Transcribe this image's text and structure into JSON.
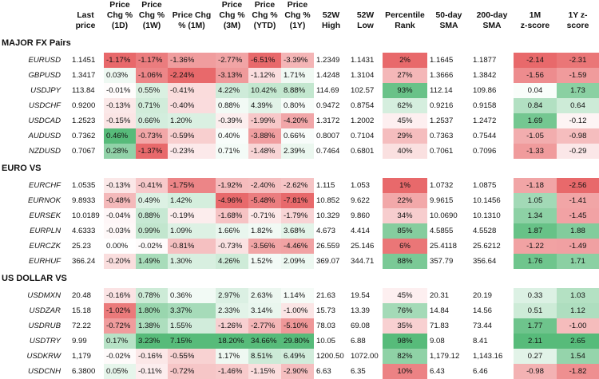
{
  "columns": [
    "",
    "Last\nprice",
    "Price\nChg %\n(1D)",
    "Price\nChg %\n(1W)",
    "Price Chg\n% (1M)",
    "Price\nChg %\n(3M)",
    "Price\nChg %\n(YTD)",
    "Price\nChg %\n(1Y)",
    "52W\nHigh",
    "52W\nLow",
    "Percentile\nRank",
    "50-day\nSMA",
    "200-day\nSMA",
    "1M\nz-score",
    "1Y z-\nscore"
  ],
  "sections": [
    {
      "title": "MAJOR FX Pairs",
      "rows": [
        {
          "pair": "EURUSD",
          "last": "1.1451",
          "d1": "-1.17%",
          "w1": "-1.17%",
          "m1": "-1.36%",
          "m3": "-2.77%",
          "ytd": "-6.51%",
          "y1": "-3.39%",
          "high": "1.2349",
          "low": "1.1431",
          "pct": "2%",
          "sma50": "1.1645",
          "sma200": "1.1877",
          "z1m": "-2.14",
          "z1y": "-2.31"
        },
        {
          "pair": "GBPUSD",
          "last": "1.3417",
          "d1": "0.03%",
          "w1": "-1.06%",
          "m1": "-2.24%",
          "m3": "-3.13%",
          "ytd": "-1.12%",
          "y1": "1.71%",
          "high": "1.4248",
          "low": "1.3104",
          "pct": "27%",
          "sma50": "1.3666",
          "sma200": "1.3842",
          "z1m": "-1.56",
          "z1y": "-1.59"
        },
        {
          "pair": "USDJPY",
          "last": "113.84",
          "d1": "-0.01%",
          "w1": "0.55%",
          "m1": "-0.41%",
          "m3": "4.22%",
          "ytd": "10.42%",
          "y1": "8.88%",
          "high": "114.69",
          "low": "102.57",
          "pct": "93%",
          "sma50": "112.14",
          "sma200": "109.86",
          "z1m": "0.04",
          "z1y": "1.73"
        },
        {
          "pair": "USDCHF",
          "last": "0.9200",
          "d1": "-0.13%",
          "w1": "0.71%",
          "m1": "-0.40%",
          "m3": "0.88%",
          "ytd": "4.39%",
          "y1": "0.80%",
          "high": "0.9472",
          "low": "0.8754",
          "pct": "62%",
          "sma50": "0.9216",
          "sma200": "0.9158",
          "z1m": "0.84",
          "z1y": "0.64"
        },
        {
          "pair": "USDCAD",
          "last": "1.2523",
          "d1": "-0.15%",
          "w1": "0.66%",
          "m1": "1.20%",
          "m3": "-0.39%",
          "ytd": "-1.99%",
          "y1": "-4.20%",
          "high": "1.3172",
          "low": "1.2002",
          "pct": "45%",
          "sma50": "1.2537",
          "sma200": "1.2472",
          "z1m": "1.69",
          "z1y": "-0.12"
        },
        {
          "pair": "AUDUSD",
          "last": "0.7362",
          "d1": "0.46%",
          "w1": "-0.73%",
          "m1": "-0.59%",
          "m3": "0.40%",
          "ytd": "-3.88%",
          "y1": "0.66%",
          "high": "0.8007",
          "low": "0.7104",
          "pct": "29%",
          "sma50": "0.7363",
          "sma200": "0.7544",
          "z1m": "-1.05",
          "z1y": "-0.98"
        },
        {
          "pair": "NZDUSD",
          "last": "0.7067",
          "d1": "0.28%",
          "w1": "-1.37%",
          "m1": "-0.23%",
          "m3": "0.71%",
          "ytd": "-1.48%",
          "y1": "2.39%",
          "high": "0.7464",
          "low": "0.6801",
          "pct": "40%",
          "sma50": "0.7061",
          "sma200": "0.7096",
          "z1m": "-1.33",
          "z1y": "-0.29"
        }
      ]
    },
    {
      "title": "EURO VS",
      "rows": [
        {
          "pair": "EURCHF",
          "last": "1.0535",
          "d1": "-0.13%",
          "w1": "-0.41%",
          "m1": "-1.75%",
          "m3": "-1.92%",
          "ytd": "-2.40%",
          "y1": "-2.62%",
          "high": "1.115",
          "low": "1.053",
          "pct": "1%",
          "sma50": "1.0732",
          "sma200": "1.0875",
          "z1m": "-1.18",
          "z1y": "-2.56"
        },
        {
          "pair": "EURNOK",
          "last": "9.8933",
          "d1": "-0.48%",
          "w1": "0.49%",
          "m1": "1.42%",
          "m3": "-4.96%",
          "ytd": "-5.48%",
          "y1": "-7.81%",
          "high": "10.852",
          "low": "9.622",
          "pct": "22%",
          "sma50": "9.9615",
          "sma200": "10.1456",
          "z1m": "1.05",
          "z1y": "-1.41"
        },
        {
          "pair": "EURSEK",
          "last": "10.0189",
          "d1": "-0.04%",
          "w1": "0.88%",
          "m1": "-0.19%",
          "m3": "-1.68%",
          "ytd": "-0.71%",
          "y1": "-1.79%",
          "high": "10.329",
          "low": "9.860",
          "pct": "34%",
          "sma50": "10.0690",
          "sma200": "10.1310",
          "z1m": "1.34",
          "z1y": "-1.45"
        },
        {
          "pair": "EURPLN",
          "last": "4.6333",
          "d1": "-0.03%",
          "w1": "0.99%",
          "m1": "1.09%",
          "m3": "1.66%",
          "ytd": "1.82%",
          "y1": "3.68%",
          "high": "4.673",
          "low": "4.414",
          "pct": "85%",
          "sma50": "4.5855",
          "sma200": "4.5528",
          "z1m": "1.87",
          "z1y": "1.88"
        },
        {
          "pair": "EURCZK",
          "last": "25.23",
          "d1": "0.00%",
          "w1": "-0.02%",
          "m1": "-0.81%",
          "m3": "-0.73%",
          "ytd": "-3.56%",
          "y1": "-4.46%",
          "high": "26.559",
          "low": "25.146",
          "pct": "6%",
          "sma50": "25.4118",
          "sma200": "25.6212",
          "z1m": "-1.22",
          "z1y": "-1.49"
        },
        {
          "pair": "EURHUF",
          "last": "366.24",
          "d1": "-0.20%",
          "w1": "1.49%",
          "m1": "1.30%",
          "m3": "4.26%",
          "ytd": "1.52%",
          "y1": "2.09%",
          "high": "369.07",
          "low": "344.71",
          "pct": "88%",
          "sma50": "357.79",
          "sma200": "356.64",
          "z1m": "1.76",
          "z1y": "1.71"
        }
      ]
    },
    {
      "title": "US DOLLAR VS",
      "rows": [
        {
          "pair": "USDMXN",
          "last": "20.48",
          "d1": "-0.16%",
          "w1": "0.78%",
          "m1": "0.36%",
          "m3": "2.97%",
          "ytd": "2.63%",
          "y1": "1.14%",
          "high": "21.63",
          "low": "19.54",
          "pct": "45%",
          "sma50": "20.31",
          "sma200": "20.19",
          "z1m": "0.33",
          "z1y": "1.03"
        },
        {
          "pair": "USDZAR",
          "last": "15.18",
          "d1": "-1.02%",
          "w1": "1.80%",
          "m1": "3.37%",
          "m3": "2.33%",
          "ytd": "3.14%",
          "y1": "-1.00%",
          "high": "15.73",
          "low": "13.39",
          "pct": "76%",
          "sma50": "14.84",
          "sma200": "14.56",
          "z1m": "0.51",
          "z1y": "1.12"
        },
        {
          "pair": "USDRUB",
          "last": "72.22",
          "d1": "-0.72%",
          "w1": "1.38%",
          "m1": "1.55%",
          "m3": "-1.26%",
          "ytd": "-2.77%",
          "y1": "-5.10%",
          "high": "78.03",
          "low": "69.08",
          "pct": "35%",
          "sma50": "71.83",
          "sma200": "73.44",
          "z1m": "1.77",
          "z1y": "-1.00"
        },
        {
          "pair": "USDTRY",
          "last": "9.99",
          "d1": "0.17%",
          "w1": "3.23%",
          "m1": "7.15%",
          "m3": "18.20%",
          "ytd": "34.66%",
          "y1": "29.80%",
          "high": "10.05",
          "low": "6.88",
          "pct": "98%",
          "sma50": "9.08",
          "sma200": "8.41",
          "z1m": "2.11",
          "z1y": "2.65"
        },
        {
          "pair": "USDKRW",
          "last": "1,179",
          "d1": "-0.02%",
          "w1": "-0.16%",
          "m1": "-0.55%",
          "m3": "1.17%",
          "ytd": "8.51%",
          "y1": "6.49%",
          "high": "1200.50",
          "low": "1072.00",
          "pct": "82%",
          "sma50": "1,179.12",
          "sma200": "1,143.16",
          "z1m": "0.27",
          "z1y": "1.54"
        },
        {
          "pair": "USDCNH",
          "last": "6.3800",
          "d1": "0.05%",
          "w1": "-0.11%",
          "m1": "-0.72%",
          "m3": "-1.46%",
          "ytd": "-1.15%",
          "y1": "-2.90%",
          "high": "6.63",
          "low": "6.35",
          "pct": "10%",
          "sma50": "6.43",
          "sma200": "6.46",
          "z1m": "-0.98",
          "z1y": "-1.82"
        }
      ]
    }
  ],
  "colors": {
    "positive": "#57bb7a",
    "negative": "#e8696b",
    "neutral": "#ffffff"
  }
}
